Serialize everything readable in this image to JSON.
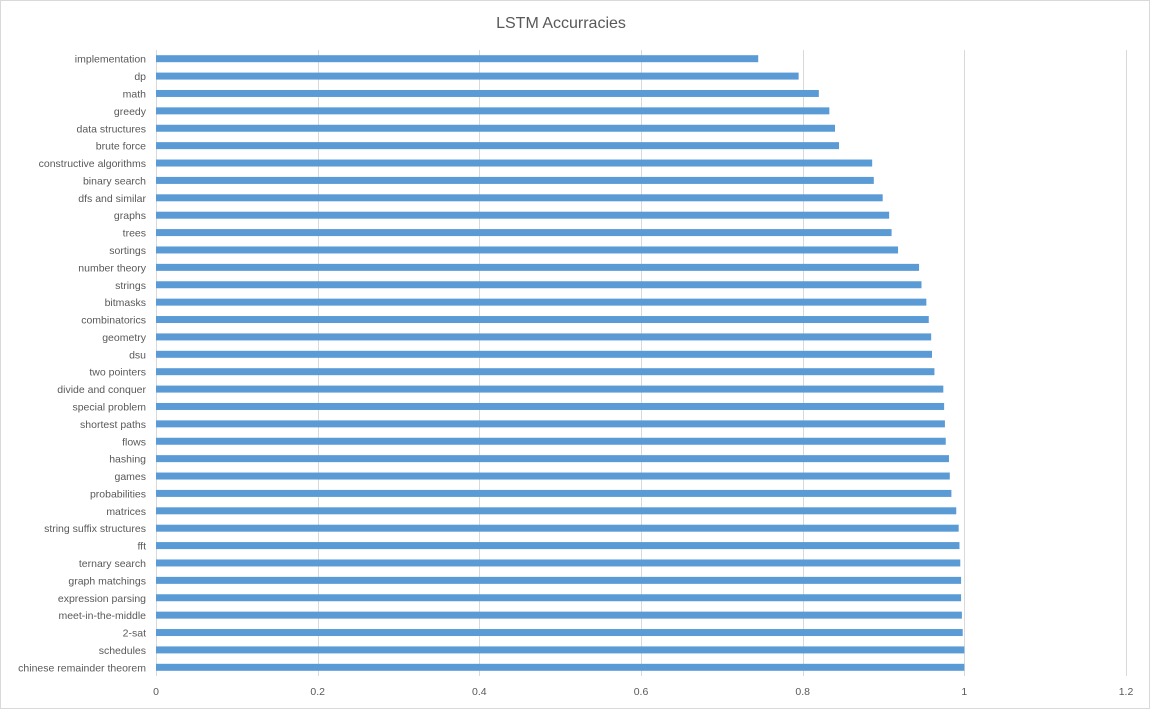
{
  "chart_data": {
    "type": "bar",
    "orientation": "horizontal",
    "title": "LSTM Accurracies",
    "xlabel": "",
    "ylabel": "",
    "xlim": [
      0,
      1.2
    ],
    "xticks": [
      0,
      0.2,
      0.4,
      0.6,
      0.8,
      1,
      1.2
    ],
    "grid": true,
    "legend": "none",
    "bar_color": "#5b9bd5",
    "categories": [
      "implementation",
      "dp",
      "math",
      "greedy",
      "data structures",
      "brute force",
      "constructive algorithms",
      "binary search",
      "dfs and similar",
      "graphs",
      "trees",
      "sortings",
      "number theory",
      "strings",
      "bitmasks",
      "combinatorics",
      "geometry",
      "dsu",
      "two pointers",
      "divide and conquer",
      "special problem",
      "shortest paths",
      "flows",
      "hashing",
      "games",
      "probabilities",
      "matrices",
      "string suffix structures",
      "fft",
      "ternary search",
      "graph matchings",
      "expression parsing",
      "meet-in-the-middle",
      "2-sat",
      "schedules",
      "chinese remainder theorem"
    ],
    "values": [
      0.745,
      0.795,
      0.82,
      0.833,
      0.84,
      0.845,
      0.886,
      0.888,
      0.899,
      0.907,
      0.91,
      0.918,
      0.944,
      0.947,
      0.953,
      0.956,
      0.959,
      0.96,
      0.963,
      0.974,
      0.975,
      0.976,
      0.977,
      0.981,
      0.982,
      0.984,
      0.99,
      0.993,
      0.994,
      0.995,
      0.996,
      0.996,
      0.997,
      0.998,
      1.0,
      1.0
    ]
  }
}
